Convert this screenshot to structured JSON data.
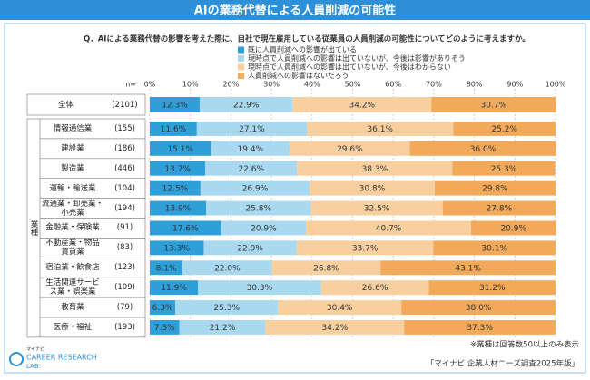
{
  "chart_data": {
    "type": "stacked_bar",
    "title": "AIの業務代替による人員削減の可能性",
    "question": "Q．AIによる業務代替の影響を考えた際に、自社で現在雇用している従業員の人員削減の可能性についてどのように考えますか。",
    "n_header": "n=",
    "group_label": "業種",
    "categories": [
      "全体",
      "情報通信業",
      "建設業",
      "製造業",
      "運輸・輸送業",
      "流通業・卸売業・\n小売業",
      "金融業・保険業",
      "不動産業・物品\n賃貸業",
      "宿泊業・飲食店",
      "生活関連サービ\nス業・娯楽業",
      "教育業",
      "医療・福祉"
    ],
    "n_labels": [
      "(2101)",
      "(155)",
      "(186)",
      "(446)",
      "(104)",
      "(194)",
      "(91)",
      "(83)",
      "(123)",
      "(109)",
      "(79)",
      "(193)"
    ],
    "series": [
      {
        "name": "既に人員削減への影響が出ている",
        "color": "#2e9fd9",
        "values": [
          12.3,
          11.6,
          15.1,
          13.7,
          12.5,
          13.9,
          17.6,
          13.3,
          8.1,
          11.9,
          6.3,
          7.3
        ],
        "value_labels": [
          "12.3%",
          "11.6%",
          "15.1%",
          "13.7%",
          "12.5%",
          "13.9%",
          "17.6%",
          "13.3%",
          "8.1%",
          "11.9%",
          "6.3%",
          "7.3%"
        ]
      },
      {
        "name": "現時点で人員削減への影響は出ていないが、今後は影響がありそう",
        "color": "#a9d9f0",
        "values": [
          22.9,
          27.1,
          19.4,
          22.6,
          26.9,
          25.8,
          20.9,
          22.9,
          22.0,
          30.3,
          25.3,
          21.2
        ],
        "value_labels": [
          "22.9%",
          "27.1%",
          "19.4%",
          "22.6%",
          "26.9%",
          "25.8%",
          "20.9%",
          "22.9%",
          "22.0%",
          "30.3%",
          "25.3%",
          "21.2%"
        ]
      },
      {
        "name": "現時点で人員削減への影響は出ていないが、今後はわからない",
        "color": "#f8cf9f",
        "values": [
          34.2,
          36.1,
          29.6,
          38.3,
          30.8,
          32.5,
          40.7,
          33.7,
          26.8,
          26.6,
          30.4,
          34.2
        ],
        "value_labels": [
          "34.2%",
          "36.1%",
          "29.6%",
          "38.3%",
          "30.8%",
          "32.5%",
          "40.7%",
          "33.7%",
          "26.8%",
          "26.6%",
          "30.4%",
          "34.2%"
        ]
      },
      {
        "name": "人員削減への影響はないだろう",
        "color": "#f2a95a",
        "values": [
          30.7,
          25.2,
          36.0,
          25.3,
          29.8,
          27.8,
          20.9,
          30.1,
          43.1,
          31.2,
          38.0,
          37.3
        ],
        "value_labels": [
          "30.7%",
          "25.2%",
          "36.0%",
          "25.3%",
          "29.8%",
          "27.8%",
          "20.9%",
          "30.1%",
          "43.1%",
          "31.2%",
          "38.0%",
          "37.3%"
        ]
      }
    ],
    "xlim": [
      0,
      100
    ],
    "xticks": [
      {
        "value": 0,
        "label": "0%"
      },
      {
        "value": 10,
        "label": "10%"
      },
      {
        "value": 20,
        "label": "20%"
      },
      {
        "value": 30,
        "label": "30%"
      },
      {
        "value": 40,
        "label": "40%"
      },
      {
        "value": 50,
        "label": "50%"
      },
      {
        "value": 60,
        "label": "60%"
      },
      {
        "value": 70,
        "label": "70%"
      },
      {
        "value": 80,
        "label": "80%"
      },
      {
        "value": 90,
        "label": "90%"
      },
      {
        "value": 100,
        "label": "100%"
      }
    ],
    "grid": true,
    "legend_position": "top-right"
  },
  "footnote": "※業種は回答数50以上のみ表示",
  "source": "「マイナビ 企業人材ニーズ調査2025年版」",
  "logo": {
    "brand": "マイナビ",
    "name": "CAREER RESEARCH",
    "lab": "LAB."
  }
}
